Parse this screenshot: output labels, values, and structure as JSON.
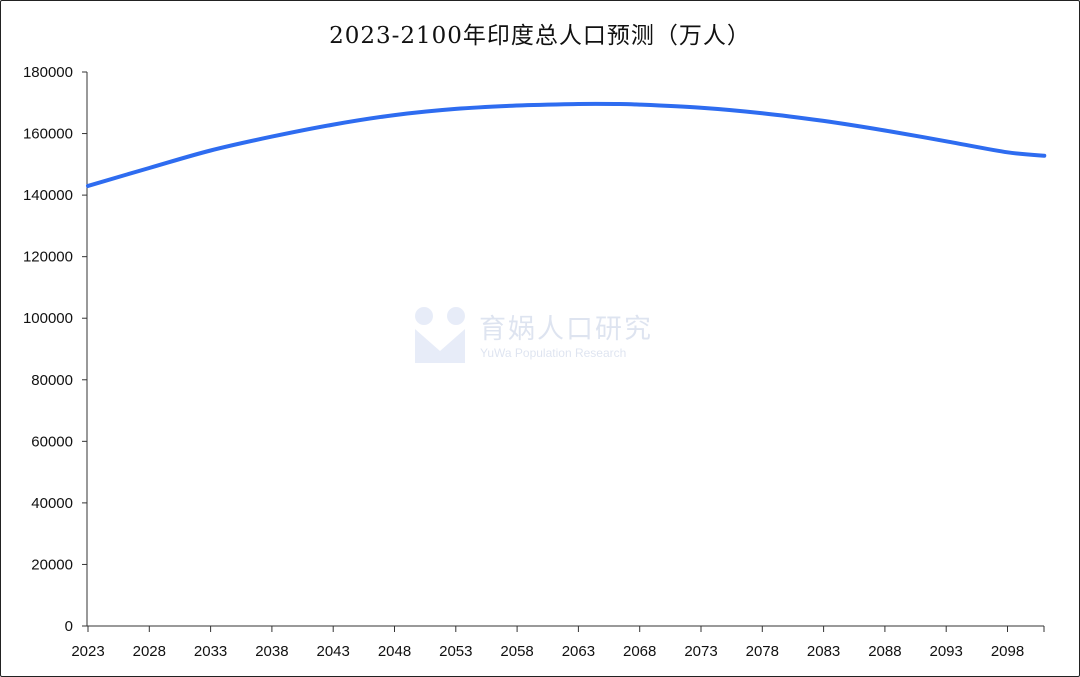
{
  "chart_data": {
    "type": "line",
    "title": "2023-2100年印度总人口预测（万人）",
    "xlabel": "",
    "ylabel": "",
    "x_tick_labels": [
      "2023",
      "2028",
      "2033",
      "2038",
      "2043",
      "2048",
      "2053",
      "2058",
      "2063",
      "2068",
      "2073",
      "2078",
      "2083",
      "2088",
      "2093",
      "2098"
    ],
    "y_tick_labels": [
      "0",
      "20000",
      "40000",
      "60000",
      "80000",
      "100000",
      "120000",
      "140000",
      "160000",
      "180000"
    ],
    "xlim": [
      2023,
      2100
    ],
    "ylim": [
      0,
      180000
    ],
    "grid": false,
    "legend": "none",
    "series": [
      {
        "color": "#2e6cf0",
        "x": [
          2023,
          2028,
          2033,
          2038,
          2043,
          2048,
          2053,
          2058,
          2063,
          2066,
          2068,
          2073,
          2078,
          2083,
          2088,
          2093,
          2098,
          2101
        ],
        "values": [
          143000,
          148800,
          154500,
          159000,
          162900,
          166000,
          168000,
          169100,
          169600,
          169600,
          169400,
          168400,
          166600,
          164100,
          161000,
          157500,
          153900,
          152800
        ]
      }
    ]
  },
  "watermark": {
    "name_cn": "育娲人口研究",
    "name_en": "YuWa Population Research"
  }
}
